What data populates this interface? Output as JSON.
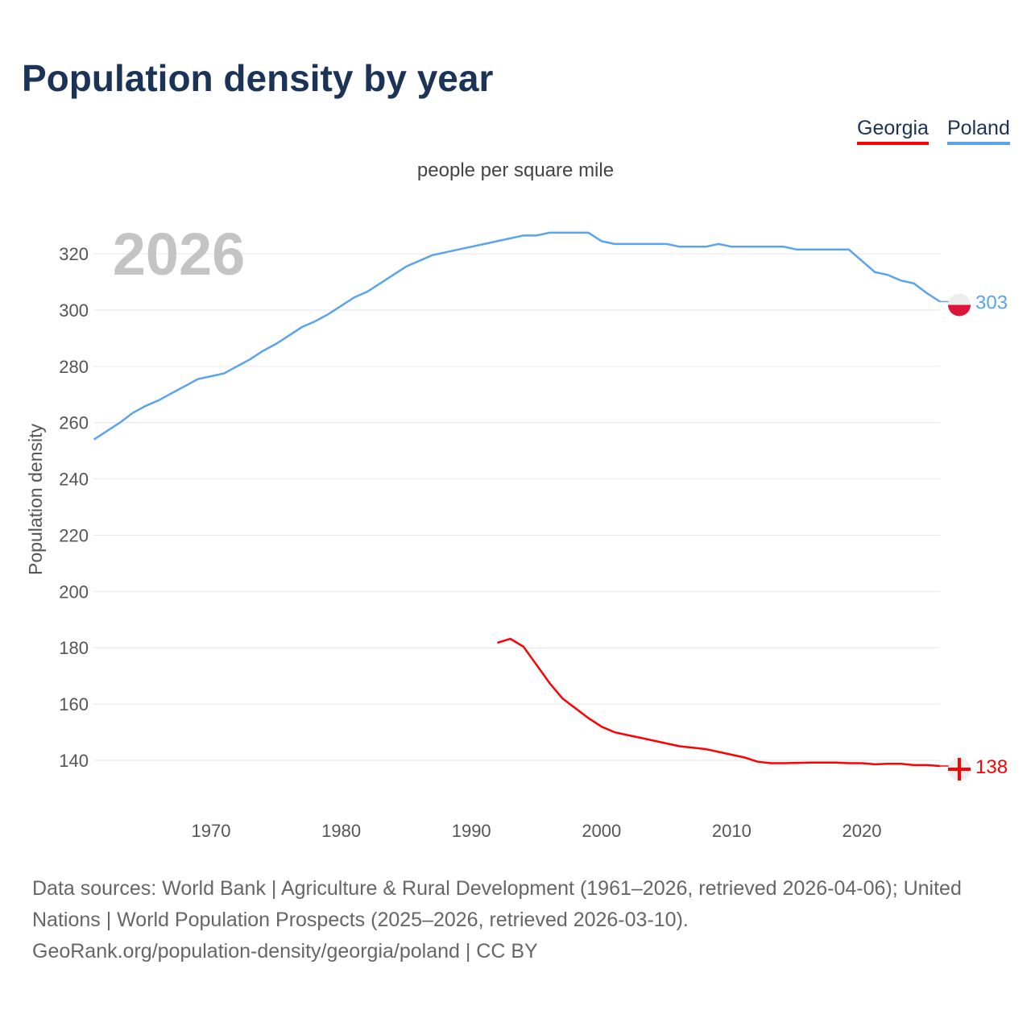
{
  "title": "Population density by year",
  "subtitle": "people per square mile",
  "source_line1": "Data sources: World Bank | Agriculture & Rural Development (1961–2026, retrieved 2026-04-06); United Nations | World Population Prospects (2025–2026, retrieved 2026-03-10).",
  "source_line2": "GeoRank.org/population-density/georgia/poland | CC BY",
  "chart_data": {
    "type": "line",
    "title": "Population density by year",
    "ylabel": "Population density",
    "year_label": "2026",
    "xlim": [
      1961,
      2026
    ],
    "ylim": [
      128,
      335
    ],
    "xticks": [
      1970,
      1980,
      1990,
      2000,
      2010,
      2020
    ],
    "yticks": [
      140,
      160,
      180,
      200,
      220,
      240,
      260,
      280,
      300,
      320
    ],
    "grid": true,
    "legend": "top-right",
    "series": [
      {
        "name": "Georgia",
        "color": "#ff0000",
        "end_label": "138",
        "start": 1992,
        "values": [
          181.8,
          183.2,
          180.4,
          174,
          167.5,
          162,
          158.5,
          155,
          152,
          150,
          149,
          148,
          147,
          146,
          145,
          144.5,
          144,
          143,
          142,
          141,
          139.5,
          139,
          139,
          139.1,
          139.2,
          139.2,
          139.2,
          139,
          139,
          138.6,
          138.8,
          138.8,
          138.3,
          138.3,
          138
        ]
      },
      {
        "name": "Poland",
        "color": "#5ba4ec",
        "end_label": "303",
        "start": 1961,
        "values": [
          254,
          257,
          260,
          263.5,
          266,
          268,
          270.5,
          273,
          275.5,
          276.5,
          277.5,
          280,
          282.5,
          285.5,
          288,
          291,
          294,
          296,
          298.5,
          301.5,
          304.5,
          306.5,
          309.5,
          312.5,
          315.5,
          317.5,
          319.5,
          320.5,
          321.5,
          322.5,
          323.5,
          324.5,
          325.5,
          326.5,
          326.5,
          327.5,
          327.5,
          327.5,
          327.5,
          324.5,
          323.5,
          323.5,
          323.5,
          323.5,
          323.5,
          322.5,
          322.5,
          322.5,
          323.5,
          322.5,
          322.5,
          322.5,
          322.5,
          322.5,
          321.5,
          321.5,
          321.5,
          321.5,
          321.5,
          317.5,
          313.5,
          312.5,
          310.5,
          309.5,
          306,
          303
        ]
      }
    ]
  }
}
